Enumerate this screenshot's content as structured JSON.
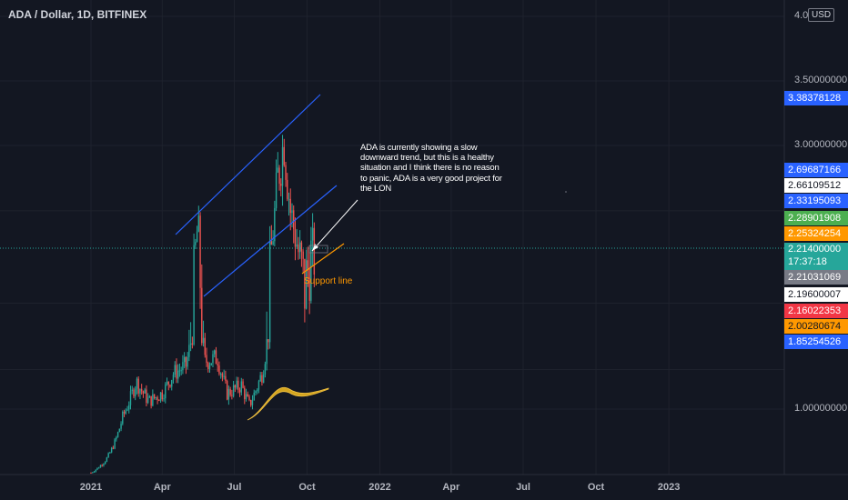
{
  "header": {
    "title": "ADA / Dollar, 1D, BITFINEX",
    "currency": "USD"
  },
  "annotation_text": "ADA is currently showing a slow downward trend, but this is a healthy situation and I think there is no reason to panic, ADA is a very good project for the LON",
  "support_label": "Support line",
  "price_axis": [
    {
      "value": "4.0",
      "y": 4.0
    },
    {
      "value": "3.50000000",
      "y": 3.5
    },
    {
      "value": "3.00000000",
      "y": 3.0
    },
    {
      "value": "1.00000000",
      "y": 1.0
    }
  ],
  "price_labels": [
    {
      "text": "3.38378128",
      "value": 3.38378128,
      "bg": "#2962ff",
      "fg": "#ffffff"
    },
    {
      "text": "2.69687166",
      "value": 2.69687166,
      "bg": "#2962ff",
      "fg": "#ffffff"
    },
    {
      "text": "2.66109512",
      "value": 2.66109512,
      "bg": "#ffffff",
      "fg": "#131722"
    },
    {
      "text": "2.33195093",
      "value": 2.33195093,
      "bg": "#2962ff",
      "fg": "#ffffff"
    },
    {
      "text": "2.28901908",
      "value": 2.28901908,
      "bg": "#4caf50",
      "fg": "#ffffff"
    },
    {
      "text": "2.25324254",
      "value": 2.25324254,
      "bg": "#ff9800",
      "fg": "#ffffff"
    },
    {
      "text": "2.21400000",
      "sub": "17:37:18",
      "value": 2.214,
      "bg": "#26a69a",
      "fg": "#ffffff"
    },
    {
      "text": "2.21031069",
      "value": 2.21031069,
      "bg": "#787b86",
      "fg": "#ffffff"
    },
    {
      "text": "2.19600007",
      "value": 2.19600007,
      "bg": "#ffffff",
      "fg": "#131722"
    },
    {
      "text": "2.16022353",
      "value": 2.16022353,
      "bg": "#f23645",
      "fg": "#ffffff"
    },
    {
      "text": "2.00280674",
      "value": 2.00280674,
      "bg": "#ff9800",
      "fg": "#131722"
    },
    {
      "text": "1.85254526",
      "value": 1.85254526,
      "bg": "#2962ff",
      "fg": "#ffffff"
    }
  ],
  "date_axis": [
    {
      "label": "2021"
    },
    {
      "label": "Apr"
    },
    {
      "label": "Jul"
    },
    {
      "label": "Oct"
    },
    {
      "label": "2022"
    },
    {
      "label": "Apr"
    },
    {
      "label": "Jul"
    },
    {
      "label": "Oct"
    },
    {
      "label": "2023"
    }
  ],
  "colors": {
    "up": "#26a69a",
    "down": "#ef5350",
    "trend": "#2962ff",
    "support": "#ff9800",
    "bg": "#131722",
    "grid": "#1e222d"
  },
  "chart_data": {
    "type": "candlestick",
    "title": "ADA / Dollar, 1D, BITFINEX",
    "ylabel": "USD",
    "current_price": 2.214,
    "x_range": [
      "2020-12",
      "2023-01"
    ],
    "closes_approx": [
      {
        "date": "2021-01-01",
        "close": 0.18
      },
      {
        "date": "2021-01-20",
        "close": 0.35
      },
      {
        "date": "2021-02-10",
        "close": 0.9
      },
      {
        "date": "2021-02-27",
        "close": 1.35
      },
      {
        "date": "2021-03-15",
        "close": 1.1
      },
      {
        "date": "2021-04-01",
        "close": 1.2
      },
      {
        "date": "2021-04-15",
        "close": 1.45
      },
      {
        "date": "2021-05-01",
        "close": 1.55
      },
      {
        "date": "2021-05-16",
        "close": 2.4
      },
      {
        "date": "2021-05-25",
        "close": 1.6
      },
      {
        "date": "2021-06-10",
        "close": 1.65
      },
      {
        "date": "2021-06-22",
        "close": 1.2
      },
      {
        "date": "2021-07-10",
        "close": 1.3
      },
      {
        "date": "2021-07-20",
        "close": 1.05
      },
      {
        "date": "2021-08-05",
        "close": 1.45
      },
      {
        "date": "2021-08-15",
        "close": 2.1
      },
      {
        "date": "2021-08-25",
        "close": 2.75
      },
      {
        "date": "2021-09-02",
        "close": 3.05
      },
      {
        "date": "2021-09-10",
        "close": 2.5
      },
      {
        "date": "2021-09-20",
        "close": 2.2
      },
      {
        "date": "2021-09-28",
        "close": 2.05
      },
      {
        "date": "2021-10-05",
        "close": 2.2
      },
      {
        "date": "2021-10-12",
        "close": 2.21
      }
    ]
  }
}
